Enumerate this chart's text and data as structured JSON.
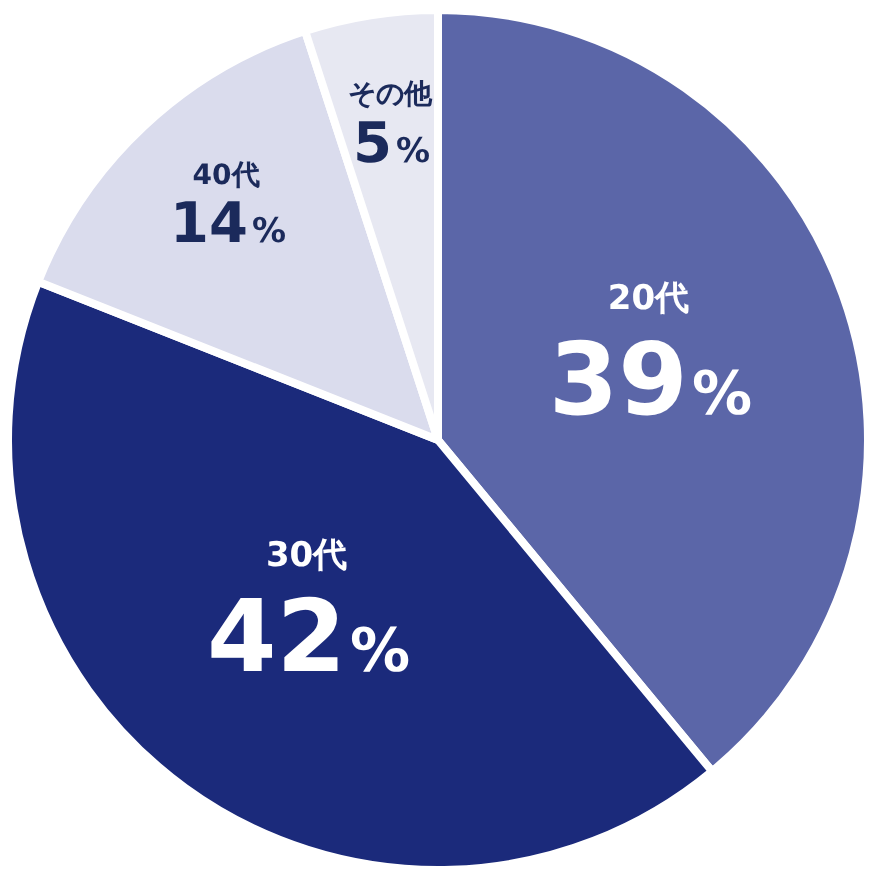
{
  "chart_data": {
    "type": "pie",
    "categories": [
      "20代",
      "30代",
      "40代",
      "その他"
    ],
    "values": [
      39,
      42,
      14,
      5
    ],
    "colors": [
      "#5b66a8",
      "#1b2a7b",
      "#dadced",
      "#e7e8f2"
    ],
    "value_labels": [
      "39%",
      "42%",
      "14%",
      "5%"
    ],
    "legend": false
  }
}
